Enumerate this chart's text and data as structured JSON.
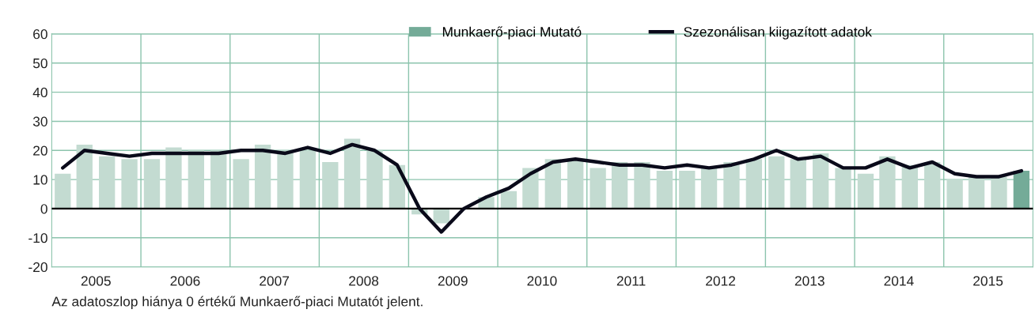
{
  "chart_data": {
    "type": "bar",
    "x": [
      "2005-02-15",
      "2005-05-15",
      "2005-08-15",
      "2005-11-15",
      "2006-02-15",
      "2006-05-15",
      "2006-08-15",
      "2006-11-15",
      "2007-02-15",
      "2007-05-15",
      "2007-08-15",
      "2007-11-15",
      "2008-02-15",
      "2008-05-15",
      "2008-08-15",
      "2008-11-15",
      "2009-02-15",
      "2009-05-15",
      "2009-08-15",
      "2009-11-15",
      "2010-02-15",
      "2010-05-15",
      "2010-08-15",
      "2010-11-15",
      "2011-02-15",
      "2011-05-15",
      "2011-08-15",
      "2011-11-15",
      "2012-02-15",
      "2012-05-15",
      "2012-08-15",
      "2012-11-15",
      "2013-02-15",
      "2013-05-15",
      "2013-08-15",
      "2013-11-15",
      "2014-02-15",
      "2014-05-15",
      "2014-08-15",
      "2014-11-15",
      "2015-02-15",
      "2015-05-15",
      "2015-08-15",
      "2015-11-15"
    ],
    "series": [
      {
        "color": "#c3dbd1",
        "values": [
          12,
          22,
          18,
          17,
          17,
          21,
          20,
          20,
          17,
          22,
          20,
          20,
          16,
          24,
          20,
          15,
          -2,
          -5,
          0,
          4,
          6,
          14,
          17,
          17,
          14,
          16,
          16,
          13,
          13,
          14,
          16,
          17,
          18,
          17,
          19,
          14,
          12,
          18,
          15,
          16,
          10,
          11,
          11,
          null
        ]
      },
      {
        "name": "Munkaerő-piaci Mutató",
        "color": "#74ab98",
        "values": [
          null,
          null,
          null,
          null,
          null,
          null,
          null,
          null,
          null,
          null,
          null,
          null,
          null,
          null,
          null,
          null,
          null,
          null,
          null,
          null,
          null,
          null,
          null,
          null,
          null,
          null,
          null,
          null,
          null,
          null,
          null,
          null,
          null,
          null,
          null,
          null,
          null,
          null,
          null,
          null,
          null,
          null,
          null,
          13
        ]
      },
      {
        "name": "Szezonálisan kiigazított adatok",
        "type": "line",
        "color": "#0a0a1a",
        "values": [
          14,
          20,
          19,
          18,
          19,
          19,
          19,
          19,
          20,
          20,
          19,
          21,
          19,
          22,
          20,
          15,
          0,
          -8,
          0,
          4,
          7,
          12,
          16,
          17,
          16,
          15,
          15,
          14,
          15,
          14,
          15,
          17,
          20,
          17,
          18,
          14,
          14,
          17,
          14,
          16,
          12,
          11,
          11,
          13
        ]
      }
    ],
    "xlim": [
      "2005-01-01",
      "2016-01-01"
    ],
    "xticks": [
      {
        "value": "2005-07-01",
        "label": "2005"
      },
      {
        "value": "2006-01-01",
        "label": null
      },
      {
        "value": "2006-07-01",
        "label": "2006"
      },
      {
        "value": "2007-01-01",
        "label": null
      },
      {
        "value": "2007-07-01",
        "label": "2007"
      },
      {
        "value": "2008-01-01",
        "label": null
      },
      {
        "value": "2008-07-01",
        "label": "2008"
      },
      {
        "value": "2009-01-01",
        "label": null
      },
      {
        "value": "2009-07-01",
        "label": "2009"
      },
      {
        "value": "2010-01-01",
        "label": null
      },
      {
        "value": "2010-07-01",
        "label": "2010"
      },
      {
        "value": "2011-01-01",
        "label": null
      },
      {
        "value": "2011-07-01",
        "label": "2011"
      },
      {
        "value": "2012-01-01",
        "label": null
      },
      {
        "value": "2012-07-01",
        "label": "2012"
      },
      {
        "value": "2013-01-01",
        "label": null
      },
      {
        "value": "2013-07-01",
        "label": "2013"
      },
      {
        "value": "2014-01-01",
        "label": null
      },
      {
        "value": "2014-07-01",
        "label": "2014"
      },
      {
        "value": "2015-01-01",
        "label": null
      },
      {
        "value": "2015-07-01",
        "label": "2015"
      }
    ],
    "ylim": [
      -20,
      60
    ],
    "yticks": [
      -20,
      -10,
      0,
      10,
      20,
      30,
      40,
      50,
      60
    ],
    "grid": true,
    "legend": "top",
    "ref_lines": [
      {
        "axis": "y",
        "value": 0,
        "color": "#000000"
      }
    ],
    "annotations": [
      "Az adatoszlop hiánya 0 értékű Munkaerő-piaci Mutatót jelent."
    ]
  }
}
